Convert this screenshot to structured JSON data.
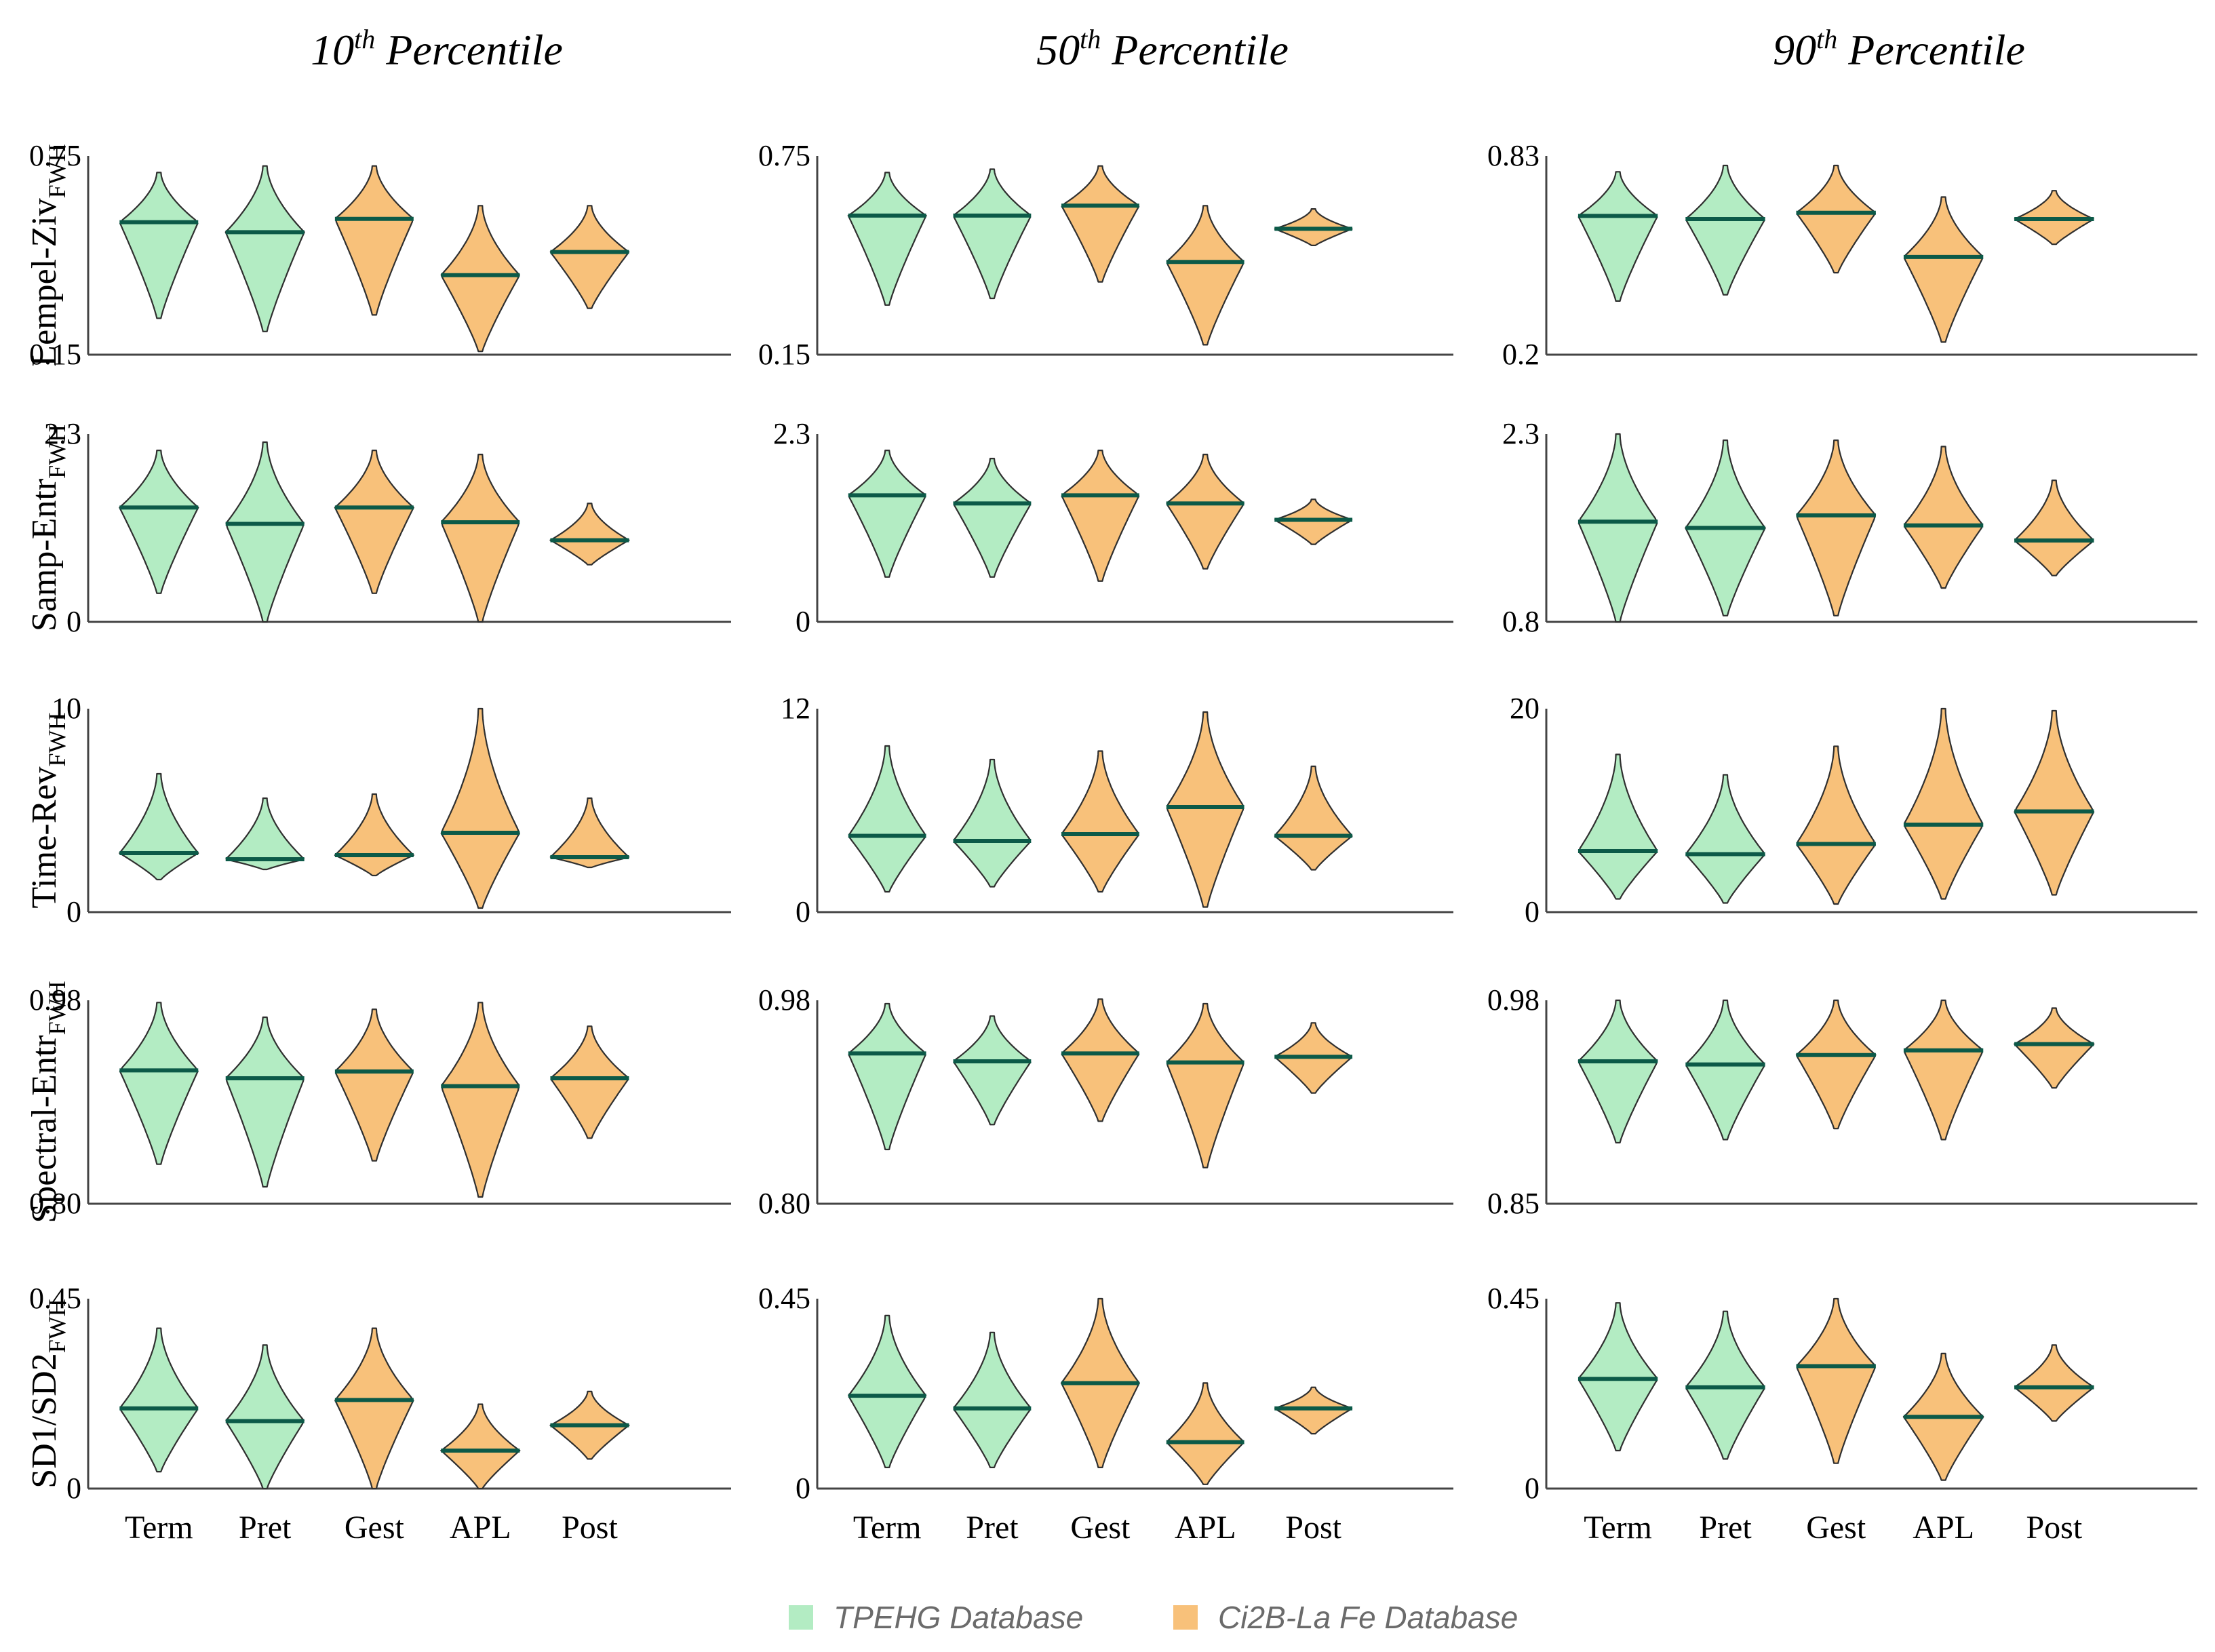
{
  "chart_data": {
    "type": "violin",
    "columns": [
      {
        "title_num": "10",
        "title_sup": "th",
        "title_rest": " Percentile"
      },
      {
        "title_num": "50",
        "title_sup": "th",
        "title_rest": " Percentile"
      },
      {
        "title_num": "90",
        "title_sup": "th",
        "title_rest": " Percentile"
      }
    ],
    "rows": [
      {
        "label": "Lempel-Ziv",
        "sub": "FWH"
      },
      {
        "label": "Samp-Entr",
        "sub": "FWH"
      },
      {
        "label": "Time-Rev",
        "sub": "FWH"
      },
      {
        "label": "Spectral-Entr",
        "sub": "FWH"
      },
      {
        "label": "SD1/SD2",
        "sub": "FWH"
      }
    ],
    "categories": [
      "Term",
      "Pret",
      "Gest",
      "APL",
      "Post"
    ],
    "category_database": [
      "TPEHG Database",
      "TPEHG Database",
      "Ci2B-La Fe Database",
      "Ci2B-La Fe Database",
      "Ci2B-La Fe Database"
    ],
    "legend": [
      {
        "name": "TPEHG Database",
        "color": "#b3ecc3"
      },
      {
        "name": "Ci2B-La Fe Database",
        "color": "#f8c17a"
      }
    ],
    "colors": {
      "tpehg_fill": "#b3ecc3",
      "ci2b_fill": "#f8c17a",
      "outline": "#2f2f2f",
      "median": "#0c5a48",
      "axis": "#444444"
    },
    "panels": [
      [
        {
          "ymin": 0.15,
          "ymax": 0.75,
          "ymin_label": "0.15",
          "ymax_label": "0.75",
          "violins": [
            {
              "median": 0.55,
              "min": 0.26,
              "max": 0.7
            },
            {
              "median": 0.52,
              "min": 0.22,
              "max": 0.72
            },
            {
              "median": 0.56,
              "min": 0.27,
              "max": 0.72
            },
            {
              "median": 0.39,
              "min": 0.16,
              "max": 0.6
            },
            {
              "median": 0.46,
              "min": 0.29,
              "max": 0.6
            }
          ]
        },
        {
          "ymin": 0,
          "ymax": 2.3,
          "ymin_label": "0",
          "ymax_label": "2.3",
          "violins": [
            {
              "median": 1.4,
              "min": 0.35,
              "max": 2.1
            },
            {
              "median": 1.2,
              "min": 0.0,
              "max": 2.2
            },
            {
              "median": 1.4,
              "min": 0.35,
              "max": 2.1
            },
            {
              "median": 1.22,
              "min": 0.0,
              "max": 2.05
            },
            {
              "median": 1.0,
              "min": 0.7,
              "max": 1.45
            }
          ]
        },
        {
          "ymin": 0,
          "ymax": 10,
          "ymin_label": "0",
          "ymax_label": "10",
          "violins": [
            {
              "median": 2.9,
              "min": 1.6,
              "max": 6.8
            },
            {
              "median": 2.6,
              "min": 2.1,
              "max": 5.6
            },
            {
              "median": 2.8,
              "min": 1.8,
              "max": 5.8
            },
            {
              "median": 3.9,
              "min": 0.2,
              "max": 10.0
            },
            {
              "median": 2.7,
              "min": 2.2,
              "max": 5.6
            }
          ]
        },
        {
          "ymin": 0.8,
          "ymax": 0.98,
          "ymin_label": "0.80",
          "ymax_label": "0.98",
          "violins": [
            {
              "median": 0.918,
              "min": 0.835,
              "max": 0.978
            },
            {
              "median": 0.911,
              "min": 0.815,
              "max": 0.965
            },
            {
              "median": 0.917,
              "min": 0.838,
              "max": 0.972
            },
            {
              "median": 0.904,
              "min": 0.806,
              "max": 0.978
            },
            {
              "median": 0.911,
              "min": 0.858,
              "max": 0.957
            }
          ]
        },
        {
          "ymin": 0,
          "ymax": 0.45,
          "ymin_label": "0",
          "ymax_label": "0.45",
          "violins": [
            {
              "median": 0.19,
              "min": 0.04,
              "max": 0.38
            },
            {
              "median": 0.16,
              "min": 0.0,
              "max": 0.34
            },
            {
              "median": 0.21,
              "min": 0.0,
              "max": 0.38
            },
            {
              "median": 0.09,
              "min": 0.0,
              "max": 0.2
            },
            {
              "median": 0.15,
              "min": 0.07,
              "max": 0.23
            }
          ]
        }
      ],
      [
        {
          "ymin": 0.15,
          "ymax": 0.75,
          "ymin_label": "0.15",
          "ymax_label": "0.75",
          "violins": [
            {
              "median": 0.57,
              "min": 0.3,
              "max": 0.7
            },
            {
              "median": 0.57,
              "min": 0.32,
              "max": 0.71
            },
            {
              "median": 0.6,
              "min": 0.37,
              "max": 0.72
            },
            {
              "median": 0.43,
              "min": 0.18,
              "max": 0.6
            },
            {
              "median": 0.53,
              "min": 0.48,
              "max": 0.59
            }
          ]
        },
        {
          "ymin": 0,
          "ymax": 2.3,
          "ymin_label": "0",
          "ymax_label": "2.3",
          "violins": [
            {
              "median": 1.55,
              "min": 0.55,
              "max": 2.1
            },
            {
              "median": 1.45,
              "min": 0.55,
              "max": 2.0
            },
            {
              "median": 1.55,
              "min": 0.5,
              "max": 2.1
            },
            {
              "median": 1.45,
              "min": 0.65,
              "max": 2.05
            },
            {
              "median": 1.25,
              "min": 0.95,
              "max": 1.5
            }
          ]
        },
        {
          "ymin": 0,
          "ymax": 12,
          "ymin_label": "0",
          "ymax_label": "12",
          "violins": [
            {
              "median": 4.5,
              "min": 1.2,
              "max": 9.8
            },
            {
              "median": 4.2,
              "min": 1.5,
              "max": 9.0
            },
            {
              "median": 4.6,
              "min": 1.2,
              "max": 9.5
            },
            {
              "median": 6.2,
              "min": 0.3,
              "max": 11.8
            },
            {
              "median": 4.5,
              "min": 2.5,
              "max": 8.6
            }
          ]
        },
        {
          "ymin": 0.8,
          "ymax": 0.98,
          "ymin_label": "0.80",
          "ymax_label": "0.98",
          "violins": [
            {
              "median": 0.933,
              "min": 0.848,
              "max": 0.977
            },
            {
              "median": 0.926,
              "min": 0.87,
              "max": 0.966
            },
            {
              "median": 0.933,
              "min": 0.873,
              "max": 0.981
            },
            {
              "median": 0.925,
              "min": 0.832,
              "max": 0.977
            },
            {
              "median": 0.93,
              "min": 0.898,
              "max": 0.96
            }
          ]
        },
        {
          "ymin": 0,
          "ymax": 0.45,
          "ymin_label": "0",
          "ymax_label": "0.45",
          "violins": [
            {
              "median": 0.22,
              "min": 0.05,
              "max": 0.41
            },
            {
              "median": 0.19,
              "min": 0.05,
              "max": 0.37
            },
            {
              "median": 0.25,
              "min": 0.05,
              "max": 0.45
            },
            {
              "median": 0.11,
              "min": 0.01,
              "max": 0.25
            },
            {
              "median": 0.19,
              "min": 0.13,
              "max": 0.24
            }
          ]
        }
      ],
      [
        {
          "ymin": 0.2,
          "ymax": 0.83,
          "ymin_label": "0.2",
          "ymax_label": "0.83",
          "violins": [
            {
              "median": 0.64,
              "min": 0.37,
              "max": 0.78
            },
            {
              "median": 0.63,
              "min": 0.39,
              "max": 0.8
            },
            {
              "median": 0.65,
              "min": 0.46,
              "max": 0.8
            },
            {
              "median": 0.51,
              "min": 0.24,
              "max": 0.7
            },
            {
              "median": 0.63,
              "min": 0.55,
              "max": 0.72
            }
          ]
        },
        {
          "ymin": 0.8,
          "ymax": 2.3,
          "ymin_label": "0.8",
          "ymax_label": "2.3",
          "violins": [
            {
              "median": 1.6,
              "min": 0.8,
              "max": 2.3
            },
            {
              "median": 1.55,
              "min": 0.85,
              "max": 2.25
            },
            {
              "median": 1.65,
              "min": 0.85,
              "max": 2.25
            },
            {
              "median": 1.57,
              "min": 1.07,
              "max": 2.2
            },
            {
              "median": 1.45,
              "min": 1.17,
              "max": 1.93
            }
          ]
        },
        {
          "ymin": 0,
          "ymax": 20,
          "ymin_label": "0",
          "ymax_label": "20",
          "violins": [
            {
              "median": 6.0,
              "min": 1.3,
              "max": 15.5
            },
            {
              "median": 5.7,
              "min": 0.9,
              "max": 13.5
            },
            {
              "median": 6.7,
              "min": 0.8,
              "max": 16.3
            },
            {
              "median": 8.6,
              "min": 1.3,
              "max": 20.0
            },
            {
              "median": 9.9,
              "min": 1.7,
              "max": 19.8
            }
          ]
        },
        {
          "ymin": 0.85,
          "ymax": 0.98,
          "ymin_label": "0.85",
          "ymax_label": "0.98",
          "violins": [
            {
              "median": 0.941,
              "min": 0.889,
              "max": 0.98
            },
            {
              "median": 0.939,
              "min": 0.891,
              "max": 0.98
            },
            {
              "median": 0.945,
              "min": 0.898,
              "max": 0.98
            },
            {
              "median": 0.948,
              "min": 0.891,
              "max": 0.98
            },
            {
              "median": 0.952,
              "min": 0.924,
              "max": 0.975
            }
          ]
        },
        {
          "ymin": 0,
          "ymax": 0.45,
          "ymin_label": "0",
          "ymax_label": "0.45",
          "violins": [
            {
              "median": 0.26,
              "min": 0.09,
              "max": 0.44
            },
            {
              "median": 0.24,
              "min": 0.07,
              "max": 0.42
            },
            {
              "median": 0.29,
              "min": 0.06,
              "max": 0.45
            },
            {
              "median": 0.17,
              "min": 0.02,
              "max": 0.32
            },
            {
              "median": 0.24,
              "min": 0.16,
              "max": 0.34
            }
          ]
        }
      ]
    ]
  }
}
